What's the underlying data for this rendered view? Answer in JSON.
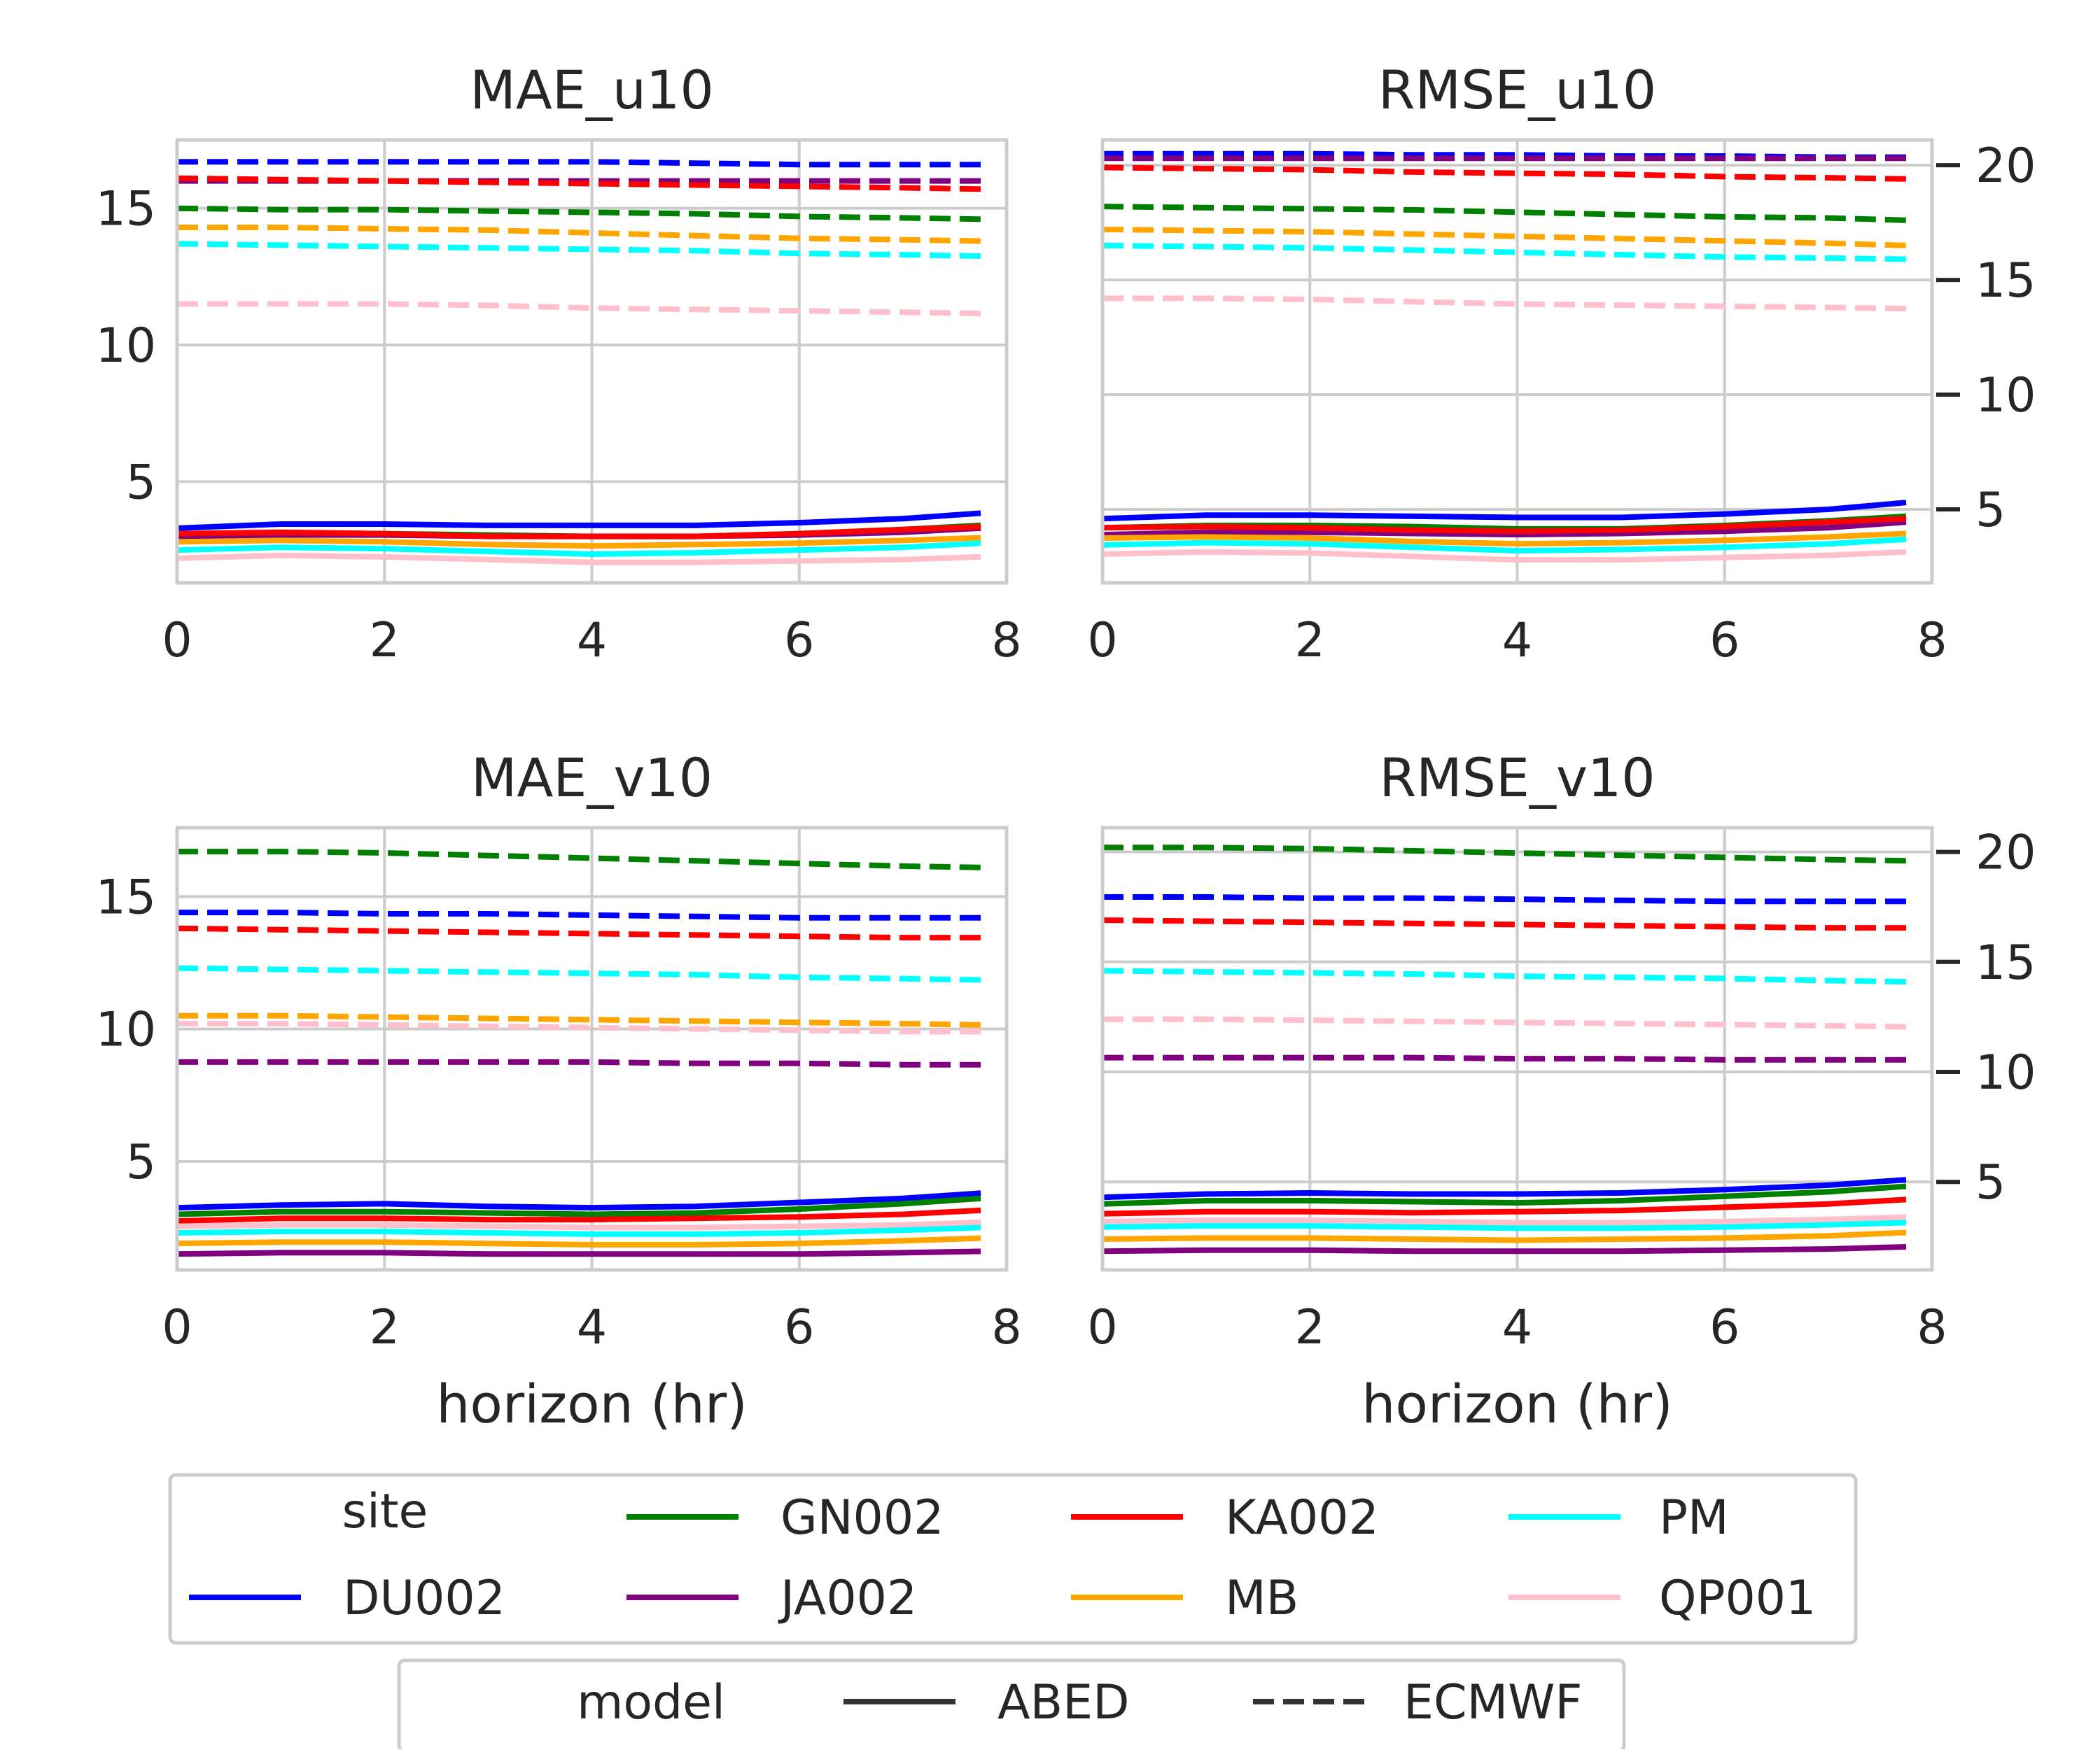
{
  "chart_data": [
    {
      "type": "line",
      "title": "MAE_u10",
      "xlabel": "",
      "ylabel": "",
      "xlim": [
        0,
        8
      ],
      "ylim": [
        1.3,
        17.5
      ],
      "xticks": [
        "0",
        "2",
        "4",
        "6",
        "8"
      ],
      "yticks": [
        "5",
        "10",
        "15"
      ],
      "y_axis_side": "left",
      "grid": true,
      "x": [
        0,
        1,
        2,
        3,
        4,
        5,
        6,
        7,
        7.75
      ],
      "series": [
        {
          "site": "DU002",
          "model": "ABED",
          "values": [
            3.3,
            3.45,
            3.45,
            3.4,
            3.4,
            3.4,
            3.5,
            3.65,
            3.85
          ]
        },
        {
          "site": "GN002",
          "model": "ABED",
          "values": [
            3.0,
            3.1,
            3.1,
            3.05,
            3.0,
            3.0,
            3.1,
            3.25,
            3.4
          ]
        },
        {
          "site": "JA002",
          "model": "ABED",
          "values": [
            3.0,
            3.05,
            3.05,
            3.0,
            3.0,
            3.0,
            3.05,
            3.15,
            3.3
          ]
        },
        {
          "site": "KA002",
          "model": "ABED",
          "values": [
            3.1,
            3.15,
            3.1,
            3.0,
            3.0,
            3.0,
            3.1,
            3.25,
            3.35
          ]
        },
        {
          "site": "MB",
          "model": "ABED",
          "values": [
            2.8,
            2.85,
            2.8,
            2.7,
            2.65,
            2.7,
            2.75,
            2.85,
            2.95
          ]
        },
        {
          "site": "PM",
          "model": "ABED",
          "values": [
            2.5,
            2.6,
            2.55,
            2.45,
            2.35,
            2.4,
            2.5,
            2.6,
            2.75
          ]
        },
        {
          "site": "QP001",
          "model": "ABED",
          "values": [
            2.2,
            2.3,
            2.25,
            2.15,
            2.05,
            2.05,
            2.1,
            2.15,
            2.25
          ]
        },
        {
          "site": "DU002",
          "model": "ECMWF",
          "values": [
            16.7,
            16.7,
            16.7,
            16.7,
            16.7,
            16.65,
            16.6,
            16.6,
            16.6
          ]
        },
        {
          "site": "JA002",
          "model": "ECMWF",
          "values": [
            16.0,
            16.0,
            16.0,
            16.0,
            16.0,
            16.0,
            16.0,
            16.0,
            16.0
          ]
        },
        {
          "site": "KA002",
          "model": "ECMWF",
          "values": [
            16.1,
            16.05,
            16.0,
            15.95,
            15.9,
            15.85,
            15.8,
            15.75,
            15.7
          ]
        },
        {
          "site": "GN002",
          "model": "ECMWF",
          "values": [
            15.0,
            14.95,
            14.95,
            14.9,
            14.85,
            14.8,
            14.7,
            14.65,
            14.6
          ]
        },
        {
          "site": "MB",
          "model": "ECMWF",
          "values": [
            14.3,
            14.3,
            14.25,
            14.2,
            14.1,
            14.0,
            13.9,
            13.85,
            13.8
          ]
        },
        {
          "site": "PM",
          "model": "ECMWF",
          "values": [
            13.7,
            13.65,
            13.6,
            13.55,
            13.5,
            13.45,
            13.35,
            13.3,
            13.25
          ]
        },
        {
          "site": "QP001",
          "model": "ECMWF",
          "values": [
            11.5,
            11.5,
            11.5,
            11.45,
            11.35,
            11.3,
            11.25,
            11.2,
            11.15
          ]
        }
      ]
    },
    {
      "type": "line",
      "title": "RMSE_u10",
      "xlabel": "",
      "ylabel": "",
      "xlim": [
        0,
        8
      ],
      "ylim": [
        1.8,
        21.1
      ],
      "xticks": [
        "0",
        "2",
        "4",
        "6",
        "8"
      ],
      "yticks": [
        "5",
        "10",
        "15",
        "20"
      ],
      "y_axis_side": "right",
      "grid": true,
      "x": [
        0,
        1,
        2,
        3,
        4,
        5,
        6,
        7,
        7.75
      ],
      "series": [
        {
          "site": "DU002",
          "model": "ABED",
          "values": [
            4.6,
            4.75,
            4.75,
            4.7,
            4.65,
            4.65,
            4.8,
            5.0,
            5.3
          ]
        },
        {
          "site": "GN002",
          "model": "ABED",
          "values": [
            4.2,
            4.3,
            4.3,
            4.25,
            4.15,
            4.15,
            4.3,
            4.5,
            4.7
          ]
        },
        {
          "site": "JA002",
          "model": "ABED",
          "values": [
            3.9,
            4.0,
            4.0,
            3.95,
            3.9,
            3.95,
            4.05,
            4.2,
            4.45
          ]
        },
        {
          "site": "KA002",
          "model": "ABED",
          "values": [
            4.2,
            4.25,
            4.2,
            4.1,
            4.05,
            4.1,
            4.25,
            4.45,
            4.6
          ]
        },
        {
          "site": "MB",
          "model": "ABED",
          "values": [
            3.75,
            3.8,
            3.75,
            3.6,
            3.5,
            3.55,
            3.65,
            3.8,
            3.95
          ]
        },
        {
          "site": "PM",
          "model": "ABED",
          "values": [
            3.45,
            3.55,
            3.5,
            3.35,
            3.2,
            3.25,
            3.35,
            3.5,
            3.7
          ]
        },
        {
          "site": "QP001",
          "model": "ABED",
          "values": [
            3.05,
            3.15,
            3.1,
            2.95,
            2.8,
            2.8,
            2.9,
            3.0,
            3.15
          ]
        },
        {
          "site": "DU002",
          "model": "ECMWF",
          "values": [
            20.5,
            20.5,
            20.5,
            20.45,
            20.45,
            20.4,
            20.4,
            20.35,
            20.35
          ]
        },
        {
          "site": "JA002",
          "model": "ECMWF",
          "values": [
            20.3,
            20.3,
            20.3,
            20.3,
            20.3,
            20.3,
            20.3,
            20.3,
            20.3
          ]
        },
        {
          "site": "KA002",
          "model": "ECMWF",
          "values": [
            19.9,
            19.85,
            19.8,
            19.7,
            19.65,
            19.6,
            19.5,
            19.45,
            19.4
          ]
        },
        {
          "site": "GN002",
          "model": "ECMWF",
          "values": [
            18.2,
            18.15,
            18.1,
            18.05,
            17.95,
            17.85,
            17.75,
            17.7,
            17.6
          ]
        },
        {
          "site": "MB",
          "model": "ECMWF",
          "values": [
            17.2,
            17.15,
            17.1,
            17.0,
            16.9,
            16.8,
            16.7,
            16.6,
            16.5
          ]
        },
        {
          "site": "PM",
          "model": "ECMWF",
          "values": [
            16.5,
            16.45,
            16.4,
            16.3,
            16.2,
            16.1,
            16.0,
            15.95,
            15.9
          ]
        },
        {
          "site": "QP001",
          "model": "ECMWF",
          "values": [
            14.2,
            14.2,
            14.15,
            14.05,
            13.95,
            13.9,
            13.85,
            13.8,
            13.75
          ]
        }
      ]
    },
    {
      "type": "line",
      "title": "MAE_v10",
      "xlabel": "horizon (hr)",
      "ylabel": "",
      "xlim": [
        0,
        8
      ],
      "ylim": [
        0.9,
        17.6
      ],
      "xticks": [
        "0",
        "2",
        "4",
        "6",
        "8"
      ],
      "yticks": [
        "5",
        "10",
        "15"
      ],
      "y_axis_side": "left",
      "grid": true,
      "x": [
        0,
        1,
        2,
        3,
        4,
        5,
        6,
        7,
        7.75
      ],
      "series": [
        {
          "site": "DU002",
          "model": "ABED",
          "values": [
            3.25,
            3.35,
            3.4,
            3.3,
            3.25,
            3.3,
            3.45,
            3.6,
            3.8
          ]
        },
        {
          "site": "GN002",
          "model": "ABED",
          "values": [
            3.0,
            3.1,
            3.1,
            3.05,
            3.0,
            3.05,
            3.2,
            3.4,
            3.6
          ]
        },
        {
          "site": "KA002",
          "model": "ABED",
          "values": [
            2.75,
            2.85,
            2.85,
            2.8,
            2.8,
            2.85,
            2.9,
            3.0,
            3.15
          ]
        },
        {
          "site": "QP001",
          "model": "ABED",
          "values": [
            2.55,
            2.6,
            2.6,
            2.55,
            2.5,
            2.5,
            2.55,
            2.6,
            2.7
          ]
        },
        {
          "site": "PM",
          "model": "ABED",
          "values": [
            2.3,
            2.35,
            2.35,
            2.3,
            2.25,
            2.25,
            2.3,
            2.4,
            2.5
          ]
        },
        {
          "site": "MB",
          "model": "ABED",
          "values": [
            1.9,
            1.95,
            1.95,
            1.9,
            1.85,
            1.85,
            1.9,
            2.0,
            2.1
          ]
        },
        {
          "site": "JA002",
          "model": "ABED",
          "values": [
            1.5,
            1.55,
            1.55,
            1.5,
            1.5,
            1.5,
            1.5,
            1.55,
            1.6
          ]
        },
        {
          "site": "GN002",
          "model": "ECMWF",
          "values": [
            16.7,
            16.7,
            16.65,
            16.55,
            16.45,
            16.35,
            16.25,
            16.15,
            16.1
          ]
        },
        {
          "site": "DU002",
          "model": "ECMWF",
          "values": [
            14.4,
            14.4,
            14.35,
            14.35,
            14.3,
            14.25,
            14.2,
            14.2,
            14.2
          ]
        },
        {
          "site": "KA002",
          "model": "ECMWF",
          "values": [
            13.8,
            13.75,
            13.7,
            13.65,
            13.6,
            13.55,
            13.5,
            13.45,
            13.45
          ]
        },
        {
          "site": "PM",
          "model": "ECMWF",
          "values": [
            12.3,
            12.25,
            12.2,
            12.15,
            12.1,
            12.05,
            11.95,
            11.9,
            11.85
          ]
        },
        {
          "site": "MB",
          "model": "ECMWF",
          "values": [
            10.5,
            10.5,
            10.45,
            10.4,
            10.35,
            10.3,
            10.25,
            10.2,
            10.15
          ]
        },
        {
          "site": "QP001",
          "model": "ECMWF",
          "values": [
            10.2,
            10.2,
            10.15,
            10.1,
            10.05,
            10.0,
            9.95,
            9.9,
            9.9
          ]
        },
        {
          "site": "JA002",
          "model": "ECMWF",
          "values": [
            8.75,
            8.75,
            8.75,
            8.75,
            8.75,
            8.7,
            8.7,
            8.65,
            8.65
          ]
        }
      ]
    },
    {
      "type": "line",
      "title": "RMSE_v10",
      "xlabel": "horizon (hr)",
      "ylabel": "",
      "xlim": [
        0,
        8
      ],
      "ylim": [
        1.0,
        21.1
      ],
      "xticks": [
        "0",
        "2",
        "4",
        "6",
        "8"
      ],
      "yticks": [
        "5",
        "10",
        "15",
        "20"
      ],
      "y_axis_side": "right",
      "grid": true,
      "x": [
        0,
        1,
        2,
        3,
        4,
        5,
        6,
        7,
        7.75
      ],
      "series": [
        {
          "site": "DU002",
          "model": "ABED",
          "values": [
            4.3,
            4.45,
            4.5,
            4.45,
            4.45,
            4.5,
            4.65,
            4.85,
            5.1
          ]
        },
        {
          "site": "GN002",
          "model": "ABED",
          "values": [
            4.0,
            4.15,
            4.15,
            4.1,
            4.05,
            4.15,
            4.35,
            4.55,
            4.8
          ]
        },
        {
          "site": "KA002",
          "model": "ABED",
          "values": [
            3.55,
            3.65,
            3.65,
            3.6,
            3.65,
            3.7,
            3.85,
            4.0,
            4.2
          ]
        },
        {
          "site": "QP001",
          "model": "ABED",
          "values": [
            3.2,
            3.25,
            3.25,
            3.2,
            3.15,
            3.15,
            3.2,
            3.3,
            3.4
          ]
        },
        {
          "site": "PM",
          "model": "ABED",
          "values": [
            2.95,
            3.0,
            3.0,
            2.95,
            2.9,
            2.9,
            2.95,
            3.05,
            3.15
          ]
        },
        {
          "site": "MB",
          "model": "ABED",
          "values": [
            2.4,
            2.45,
            2.45,
            2.4,
            2.35,
            2.4,
            2.45,
            2.55,
            2.7
          ]
        },
        {
          "site": "JA002",
          "model": "ABED",
          "values": [
            1.85,
            1.9,
            1.9,
            1.85,
            1.85,
            1.85,
            1.9,
            1.95,
            2.05
          ]
        },
        {
          "site": "GN002",
          "model": "ECMWF",
          "values": [
            20.2,
            20.2,
            20.15,
            20.05,
            19.95,
            19.85,
            19.75,
            19.65,
            19.6
          ]
        },
        {
          "site": "DU002",
          "model": "ECMWF",
          "values": [
            17.95,
            17.95,
            17.9,
            17.9,
            17.85,
            17.8,
            17.75,
            17.75,
            17.75
          ]
        },
        {
          "site": "KA002",
          "model": "ECMWF",
          "values": [
            16.9,
            16.85,
            16.8,
            16.75,
            16.7,
            16.65,
            16.6,
            16.55,
            16.55
          ]
        },
        {
          "site": "PM",
          "model": "ECMWF",
          "values": [
            14.6,
            14.55,
            14.5,
            14.45,
            14.35,
            14.3,
            14.25,
            14.15,
            14.1
          ]
        },
        {
          "site": "QP001",
          "model": "ECMWF",
          "values": [
            12.4,
            12.4,
            12.35,
            12.3,
            12.25,
            12.2,
            12.15,
            12.1,
            12.05
          ]
        },
        {
          "site": "JA002",
          "model": "ECMWF",
          "values": [
            10.65,
            10.65,
            10.65,
            10.65,
            10.6,
            10.6,
            10.55,
            10.55,
            10.55
          ]
        }
      ]
    }
  ],
  "legend_site": {
    "title": "site",
    "entries": [
      {
        "label": "DU002",
        "color": "#0000ff"
      },
      {
        "label": "GN002",
        "color": "#008000"
      },
      {
        "label": "JA002",
        "color": "#800080"
      },
      {
        "label": "KA002",
        "color": "#ff0000"
      },
      {
        "label": "MB",
        "color": "#ffa500"
      },
      {
        "label": "PM",
        "color": "#00ffff"
      },
      {
        "label": "QP001",
        "color": "#ffc0cb"
      }
    ]
  },
  "legend_model": {
    "title": "model",
    "entries": [
      {
        "label": "ABED",
        "style": "solid"
      },
      {
        "label": "ECMWF",
        "style": "dashed"
      }
    ]
  },
  "colors": {
    "DU002": "#0000ff",
    "GN002": "#008000",
    "JA002": "#800080",
    "KA002": "#ff0000",
    "MB": "#ffa500",
    "PM": "#00ffff",
    "QP001": "#ffc0cb",
    "grid": "#cccccc",
    "text": "#262626",
    "model_line": "#333333"
  }
}
